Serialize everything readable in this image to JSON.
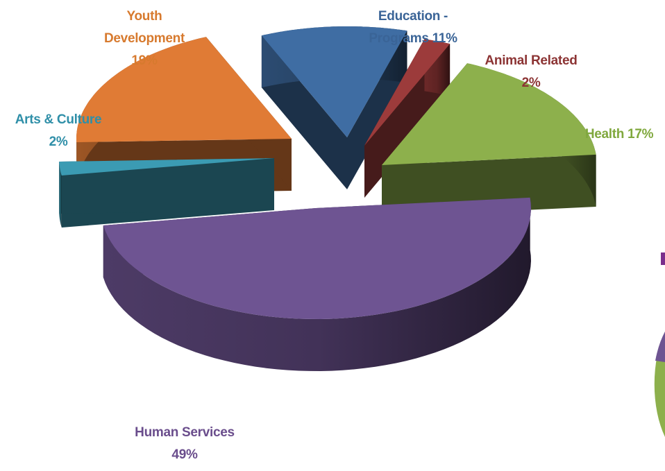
{
  "chart_data": {
    "type": "pie",
    "style": "3d-exploded",
    "title": "",
    "slices": [
      {
        "label": "Human Services",
        "value": 49,
        "display": [
          "Human Services",
          "49%"
        ],
        "color": "#6e5492"
      },
      {
        "label": "Arts & Culture",
        "value": 2,
        "display": [
          "Arts & Culture",
          "2%"
        ],
        "color": "#3b9bb3"
      },
      {
        "label": "Youth Development",
        "value": 19,
        "display": [
          "Youth",
          "Development",
          "19%"
        ],
        "color": "#e07b35"
      },
      {
        "label": "Education - Programs",
        "value": 11,
        "display": [
          "Education -",
          "Programs 11%"
        ],
        "color": "#3f6da3"
      },
      {
        "label": "Animal Related",
        "value": 2,
        "display": [
          "Animal Related",
          "2%"
        ],
        "color": "#9c3b3b"
      },
      {
        "label": "Health",
        "value": 17,
        "display": [
          "Health 17%"
        ],
        "color": "#8db04c"
      }
    ],
    "label_colors": {
      "Human Services": "#6a4d8c",
      "Arts & Culture": "#2f8fa8",
      "Youth Development": "#d77a2e",
      "Education - Programs": "#3a6497",
      "Animal Related": "#8c3434",
      "Health": "#80a83e"
    },
    "legend": "none"
  },
  "side_elements": {
    "accent_colors": [
      "#7a2e8c",
      "#8db04c",
      "#6e5492"
    ]
  }
}
